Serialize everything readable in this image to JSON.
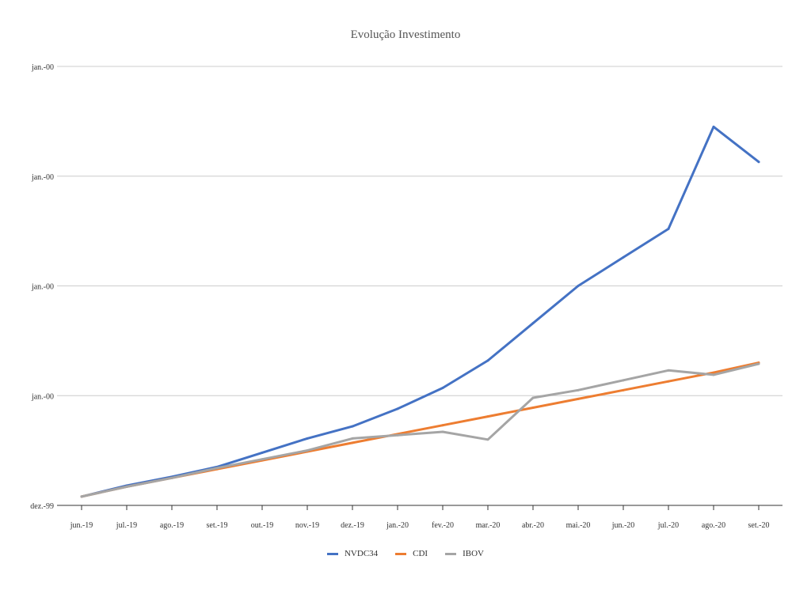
{
  "chart_data": {
    "type": "line",
    "title": "Evolução Investimento",
    "xlabel": "",
    "ylabel": "",
    "categories": [
      "jun.-19",
      "jul.-19",
      "ago.-19",
      "set.-19",
      "out.-19",
      "nov.-19",
      "dez.-19",
      "jan.-20",
      "fev.-20",
      "mar.-20",
      "abr.-20",
      "mai.-20",
      "jun.-20",
      "jul.-20",
      "ago.-20",
      "set.-20"
    ],
    "y_tick_labels": [
      "dez.-99",
      "jan.-00",
      "jan.-00",
      "jan.-00",
      "jan.-00"
    ],
    "ylim": [
      0,
      4
    ],
    "grid": true,
    "legend_position": "bottom",
    "series": [
      {
        "name": "NVDC34",
        "color": "#4472C4",
        "values": [
          0.08,
          0.18,
          0.26,
          0.35,
          0.48,
          0.61,
          0.72,
          0.88,
          1.07,
          1.32,
          1.66,
          2.0,
          2.26,
          2.52,
          3.45,
          3.13
        ]
      },
      {
        "name": "CDI",
        "color": "#ED7D31",
        "values": [
          0.08,
          0.17,
          0.25,
          0.33,
          0.41,
          0.49,
          0.57,
          0.65,
          0.73,
          0.81,
          0.89,
          0.97,
          1.05,
          1.13,
          1.21,
          1.3
        ]
      },
      {
        "name": "IBOV",
        "color": "#A5A5A5",
        "values": [
          0.08,
          0.17,
          0.25,
          0.34,
          0.42,
          0.5,
          0.61,
          0.64,
          0.67,
          0.6,
          0.98,
          1.05,
          1.14,
          1.23,
          1.19,
          1.29
        ]
      }
    ]
  }
}
